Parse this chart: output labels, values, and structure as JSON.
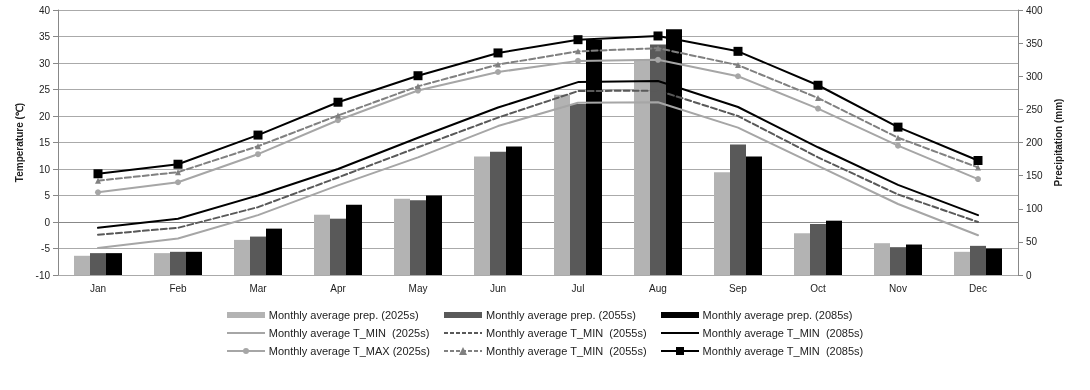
{
  "chart_data": {
    "type": "bar",
    "categories": [
      "Jan",
      "Feb",
      "Mar",
      "Apr",
      "May",
      "Jun",
      "Jul",
      "Aug",
      "Sep",
      "Oct",
      "Nov",
      "Dec"
    ],
    "ylabel": "Temperature (℃)",
    "y2label": "Precipitation (mm)",
    "ylim": [
      -10,
      40
    ],
    "yticks": [
      -10,
      -5,
      0,
      5,
      10,
      15,
      20,
      25,
      30,
      35,
      40
    ],
    "y2lim": [
      0,
      400
    ],
    "y2ticks": [
      0,
      50,
      100,
      150,
      200,
      250,
      300,
      350,
      400
    ],
    "grid": "y",
    "legend": "bottom",
    "series": [
      {
        "name": "Monthly average prep. (2025s)",
        "axis": "y2",
        "color": "#b3b3b3",
        "values": [
          29,
          33,
          53,
          91,
          115,
          179,
          272,
          325,
          155,
          63,
          48,
          35
        ]
      },
      {
        "name": "Monthly average prep. (2055s)",
        "axis": "y2",
        "color": "#595959",
        "values": [
          33,
          35,
          58,
          85,
          113,
          186,
          258,
          348,
          197,
          77,
          42,
          44
        ]
      },
      {
        "name": "Monthly average prep. (2085s)",
        "axis": "y2",
        "color": "#000000",
        "values": [
          33,
          35,
          70,
          106,
          120,
          194,
          355,
          371,
          179,
          82,
          46,
          40
        ]
      },
      {
        "name": "Monthly average T_MIN  (2025s)",
        "type": "line",
        "color": "#a6a6a6",
        "marker": "none",
        "line_style": "solid",
        "values": [
          -4.9,
          -3.1,
          1.3,
          6.9,
          12.2,
          18.1,
          22.5,
          22.6,
          17.8,
          10.6,
          3.4,
          -2.5
        ]
      },
      {
        "name": "Monthly average T_MIN  (2055s)",
        "type": "line",
        "color": "#595959",
        "marker": "none",
        "line_style": "dashed",
        "values": [
          -2.4,
          -1.1,
          2.8,
          8.4,
          14.1,
          19.7,
          24.7,
          24.8,
          20,
          12.2,
          5.2,
          0
        ]
      },
      {
        "name": "Monthly average T_MIN  (2085s)",
        "type": "line",
        "color": "#000000",
        "marker": "none",
        "line_style": "solid",
        "values": [
          -1.1,
          0.6,
          5,
          10,
          15.9,
          21.6,
          26.4,
          26.6,
          21.7,
          14.1,
          7,
          1.3
        ]
      },
      {
        "name": "Monthly average T_MAX (2025s)",
        "type": "line",
        "color": "#a6a6a6",
        "marker": "circle",
        "line_style": "solid",
        "values": [
          5.6,
          7.5,
          12.8,
          19.2,
          24.8,
          28.3,
          30.4,
          30.6,
          27.5,
          21.4,
          14.4,
          8.1
        ]
      },
      {
        "name": "Monthly average T_MIN  (2055s)",
        "type": "line",
        "color": "#808080",
        "marker": "triangle",
        "line_style": "dashed",
        "values": [
          7.8,
          9.4,
          14.3,
          20.1,
          25.6,
          29.7,
          32.2,
          32.8,
          29.6,
          23.4,
          15.9,
          10.3
        ]
      },
      {
        "name": "Monthly average T_MIN  (2085s)",
        "type": "line",
        "color": "#000000",
        "marker": "square",
        "line_style": "solid",
        "values": [
          9.1,
          10.9,
          16.4,
          22.6,
          27.6,
          31.9,
          34.4,
          35.1,
          32.2,
          25.8,
          17.9,
          11.6
        ]
      }
    ]
  }
}
